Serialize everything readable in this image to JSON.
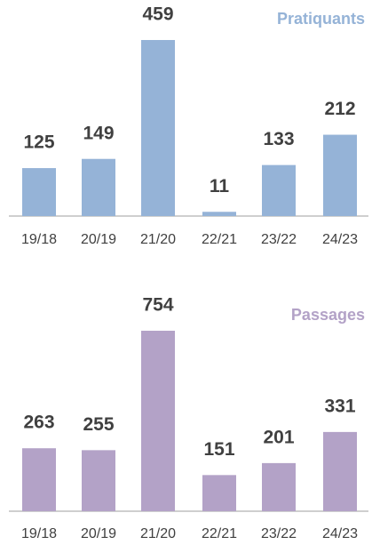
{
  "chart_data": [
    {
      "type": "bar",
      "title": "Pratiquants",
      "categories": [
        "19/18",
        "20/19",
        "21/20",
        "22/21",
        "23/22",
        "24/23"
      ],
      "values": [
        125,
        149,
        459,
        11,
        133,
        212
      ],
      "color": "#95b3d7"
    },
    {
      "type": "bar",
      "title": "Passages",
      "categories": [
        "19/18",
        "20/19",
        "21/20",
        "22/21",
        "23/22",
        "24/23"
      ],
      "values": [
        263,
        255,
        754,
        151,
        201,
        331
      ],
      "color": "#b3a2c7"
    }
  ]
}
